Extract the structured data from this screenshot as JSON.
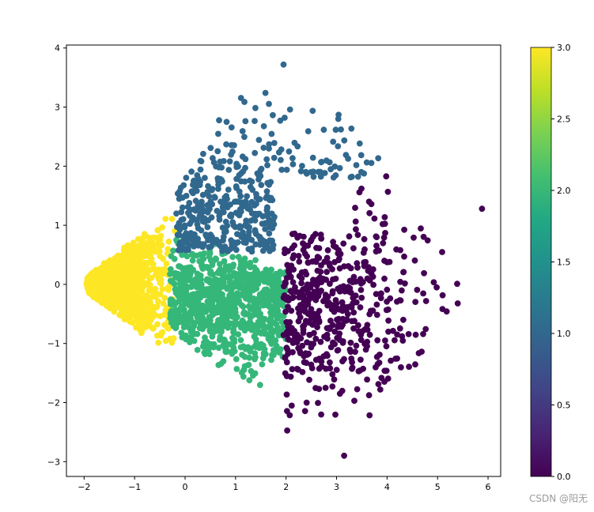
{
  "chart_data": {
    "type": "scatter",
    "title": "",
    "xlabel": "",
    "ylabel": "",
    "xlim": [
      -2.35,
      6.25
    ],
    "ylim": [
      -3.25,
      4.05
    ],
    "xticks": [
      "−2",
      "−1",
      "0",
      "1",
      "2",
      "3",
      "4",
      "5",
      "6"
    ],
    "yticks": [
      "−3",
      "−2",
      "−1",
      "0",
      "1",
      "2",
      "3",
      "4"
    ],
    "colorbar": {
      "range": [
        0.0,
        3.0
      ],
      "ticks": [
        "0.0",
        "0.5",
        "1.0",
        "1.5",
        "2.0",
        "2.5",
        "3.0"
      ],
      "colormap": "viridis"
    },
    "color_mapping": "cluster label",
    "clusters": [
      {
        "label": 0,
        "color": "#440154",
        "count": 520,
        "x_range": [
          1.95,
          5.85
        ],
        "y_range": [
          -2.9,
          1.85
        ],
        "shape": "right lobe of a diamond (|x-2| + |y| ≤ ~4)"
      },
      {
        "label": 1,
        "color": "#31688e",
        "count": 420,
        "x_range": [
          -0.2,
          4.3
        ],
        "y_range": [
          0.35,
          3.7
        ],
        "shape": "top lobe of the diamond above the green/yellow clusters"
      },
      {
        "label": 2,
        "color": "#35b779",
        "count": 850,
        "x_range": [
          -0.3,
          2.0
        ],
        "y_range": [
          -2.2,
          0.9
        ],
        "shape": "center-lower block"
      },
      {
        "label": 3,
        "color": "#fde725",
        "count": 1800,
        "x_range": [
          -1.95,
          -0.2
        ],
        "y_range": [
          -1.0,
          1.45
        ],
        "shape": "dense left wedge pointing to (-1.95, 0)"
      }
    ],
    "notable_points": [
      {
        "x": 5.88,
        "y": 1.28,
        "label": 0
      },
      {
        "x": 3.15,
        "y": -2.9,
        "label": 0
      },
      {
        "x": 1.95,
        "y": 3.72,
        "label": 1
      },
      {
        "x": -1.95,
        "y": 0.0,
        "label": 3
      }
    ]
  },
  "watermark": "CSDN @阳无"
}
